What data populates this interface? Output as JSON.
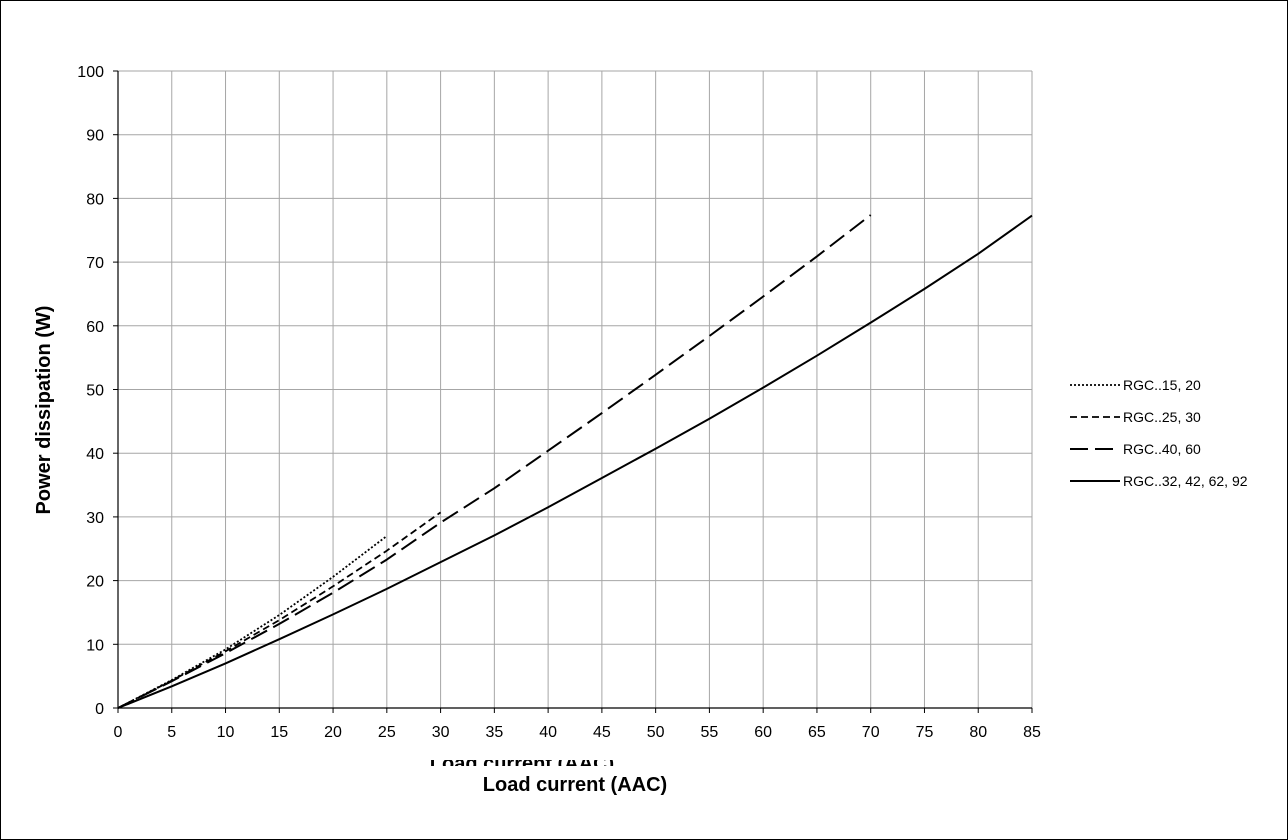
{
  "chart_data": {
    "type": "line",
    "title": "",
    "xlabel": "Load current (AAC)",
    "ylabel": "Power dissipation (W)",
    "xlim": [
      0,
      85
    ],
    "ylim": [
      0,
      100
    ],
    "x_ticks": [
      "0",
      "5",
      "10",
      "15",
      "20",
      "25",
      "30",
      "35",
      "40",
      "45",
      "50",
      "55",
      "60",
      "65",
      "70",
      "75",
      "80",
      "85"
    ],
    "y_ticks": [
      "0",
      "10",
      "20",
      "30",
      "40",
      "50",
      "60",
      "70",
      "80",
      "90",
      "100"
    ],
    "grid": true,
    "legend_position": "right",
    "series": [
      {
        "name": "RGC..15, 20",
        "style": "dotted",
        "x": [
          0,
          5,
          10,
          15,
          20,
          25
        ],
        "y": [
          0,
          4.4,
          9.2,
          14.6,
          20.6,
          27
        ]
      },
      {
        "name": "RGC..25, 30",
        "style": "dashed",
        "x": [
          0,
          5,
          10,
          15,
          20,
          25,
          30
        ],
        "y": [
          0,
          4.3,
          8.9,
          13.8,
          19.1,
          24.7,
          30.7
        ]
      },
      {
        "name": "RGC..40, 60",
        "style": "longdash",
        "x": [
          0,
          5,
          10,
          15,
          20,
          25,
          30,
          35,
          40,
          45,
          50,
          55,
          60,
          65,
          70
        ],
        "y": [
          0,
          4.2,
          8.6,
          13.2,
          18.1,
          23.3,
          29.1,
          34.5,
          40.4,
          46.3,
          52.3,
          58.4,
          64.6,
          70.9,
          77.4
        ]
      },
      {
        "name": "RGC..32, 42, 62, 92",
        "style": "solid",
        "x": [
          0,
          5,
          10,
          15,
          20,
          25,
          30,
          35,
          40,
          45,
          50,
          55,
          60,
          65,
          70,
          75,
          80,
          85
        ],
        "y": [
          0,
          3.4,
          7.0,
          10.8,
          14.7,
          18.7,
          22.9,
          27.1,
          31.5,
          36.1,
          40.7,
          45.4,
          50.3,
          55.3,
          60.5,
          65.8,
          71.3,
          77.3
        ]
      }
    ]
  }
}
